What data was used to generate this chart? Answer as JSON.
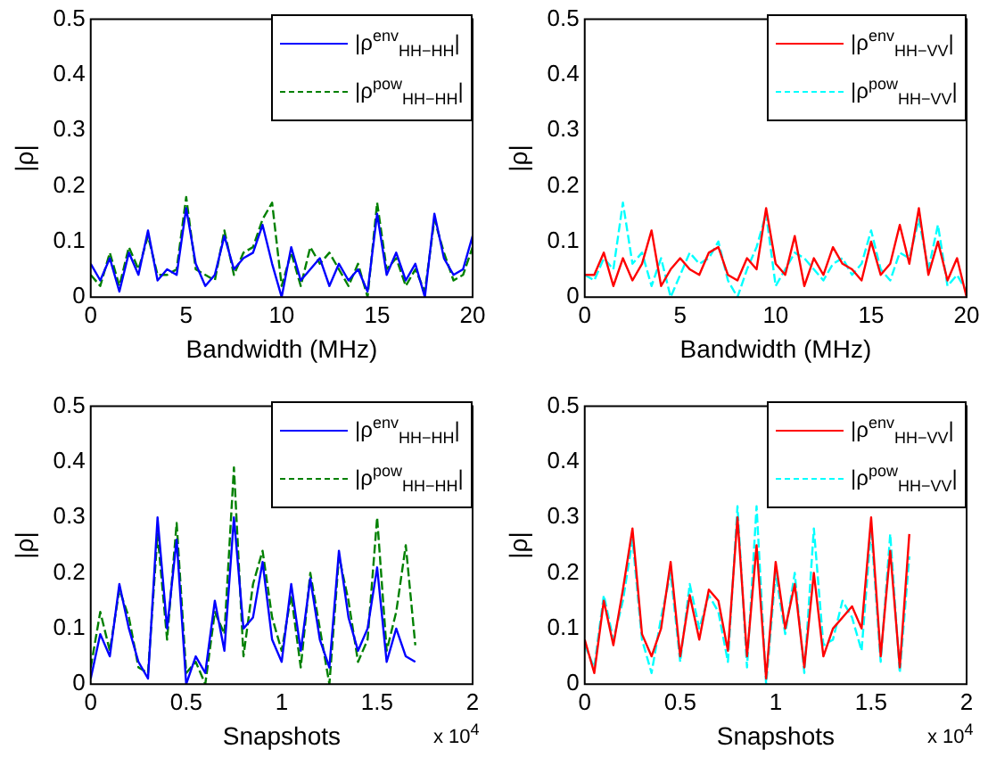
{
  "chart_data": [
    {
      "type": "line",
      "xlabel": "Bandwidth (MHz)",
      "ylabel": "|ρ|",
      "xlim": [
        0,
        20
      ],
      "xticks": [
        0,
        5,
        10,
        15,
        20
      ],
      "ylim": [
        0,
        0.5
      ],
      "yticks": [
        0,
        0.1,
        0.2,
        0.3,
        0.4,
        0.5
      ],
      "legend": "top right",
      "marker": "none",
      "x": [
        0,
        0.5,
        1,
        1.5,
        2,
        2.5,
        3,
        3.5,
        4,
        4.5,
        5,
        5.5,
        6,
        6.5,
        7,
        7.5,
        8,
        8.5,
        9,
        9.5,
        10,
        10.5,
        11,
        11.5,
        12,
        12.5,
        13,
        13.5,
        14,
        14.5,
        15,
        15.5,
        16,
        16.5,
        17,
        17.5,
        18,
        18.5,
        19,
        19.5,
        20
      ],
      "series": [
        {
          "name": "|ρ$^{env}$$_{HH−HH}$|",
          "color": "#0000ff",
          "line_style": "solid",
          "values": [
            0.06,
            0.03,
            0.07,
            0.01,
            0.08,
            0.04,
            0.12,
            0.03,
            0.05,
            0.04,
            0.16,
            0.06,
            0.02,
            0.04,
            0.11,
            0.05,
            0.07,
            0.08,
            0.13,
            0.06,
            0.0,
            0.09,
            0.03,
            0.05,
            0.07,
            0.02,
            0.06,
            0.03,
            0.05,
            0.01,
            0.15,
            0.04,
            0.08,
            0.03,
            0.06,
            0.0,
            0.15,
            0.07,
            0.04,
            0.05,
            0.11
          ]
        },
        {
          "name": "|ρ$^{pow}$$_{HH−HH}$|",
          "color": "#008000",
          "line_style": "dashed",
          "values": [
            0.04,
            0.02,
            0.08,
            0.02,
            0.09,
            0.05,
            0.11,
            0.04,
            0.04,
            0.05,
            0.18,
            0.05,
            0.04,
            0.03,
            0.12,
            0.04,
            0.08,
            0.09,
            0.14,
            0.17,
            0.02,
            0.08,
            0.02,
            0.09,
            0.06,
            0.08,
            0.05,
            0.02,
            0.06,
            0.0,
            0.17,
            0.05,
            0.07,
            0.02,
            0.05,
            0.01,
            0.14,
            0.08,
            0.03,
            0.04,
            0.09
          ]
        }
      ]
    },
    {
      "type": "line",
      "xlabel": "Bandwidth (MHz)",
      "ylabel": "|ρ|",
      "xlim": [
        0,
        20
      ],
      "xticks": [
        0,
        5,
        10,
        15,
        20
      ],
      "ylim": [
        0,
        0.5
      ],
      "yticks": [
        0,
        0.1,
        0.2,
        0.3,
        0.4,
        0.5
      ],
      "legend": "top right",
      "marker": "none",
      "x": [
        0,
        0.5,
        1,
        1.5,
        2,
        2.5,
        3,
        3.5,
        4,
        4.5,
        5,
        5.5,
        6,
        6.5,
        7,
        7.5,
        8,
        8.5,
        9,
        9.5,
        10,
        10.5,
        11,
        11.5,
        12,
        12.5,
        13,
        13.5,
        14,
        14.5,
        15,
        15.5,
        16,
        16.5,
        17,
        17.5,
        18,
        18.5,
        19,
        19.5,
        20
      ],
      "series": [
        {
          "name": "|ρ$^{env}$$_{HH−VV}$|",
          "color": "#ff0000",
          "line_style": "solid",
          "values": [
            0.04,
            0.04,
            0.08,
            0.02,
            0.07,
            0.03,
            0.06,
            0.12,
            0.02,
            0.05,
            0.07,
            0.05,
            0.04,
            0.08,
            0.09,
            0.04,
            0.03,
            0.07,
            0.05,
            0.16,
            0.06,
            0.04,
            0.11,
            0.02,
            0.07,
            0.04,
            0.09,
            0.06,
            0.05,
            0.03,
            0.1,
            0.04,
            0.06,
            0.13,
            0.06,
            0.16,
            0.04,
            0.1,
            0.03,
            0.07,
            0.0
          ]
        },
        {
          "name": "|ρ$^{pow}$$_{HH−VV}$|",
          "color": "#00ffff",
          "line_style": "dashed",
          "values": [
            0.04,
            0.03,
            0.07,
            0.05,
            0.17,
            0.06,
            0.08,
            0.02,
            0.07,
            0.0,
            0.04,
            0.08,
            0.06,
            0.07,
            0.1,
            0.03,
            0.0,
            0.05,
            0.09,
            0.15,
            0.02,
            0.05,
            0.08,
            0.07,
            0.05,
            0.03,
            0.06,
            0.07,
            0.04,
            0.06,
            0.12,
            0.05,
            0.03,
            0.08,
            0.07,
            0.14,
            0.05,
            0.13,
            0.02,
            0.04,
            0.01
          ]
        }
      ]
    },
    {
      "type": "line",
      "xlabel": "Snapshots",
      "ylabel": "|ρ|",
      "annotations": [
        "x 10$^{4}$"
      ],
      "xlim": [
        0,
        2
      ],
      "xticks": [
        0,
        0.5,
        1,
        1.5,
        2
      ],
      "ylim": [
        0,
        0.5
      ],
      "yticks": [
        0,
        0.1,
        0.2,
        0.3,
        0.4,
        0.5
      ],
      "legend": "top right",
      "marker": "none",
      "x": [
        0,
        0.05,
        0.1,
        0.15,
        0.2,
        0.25,
        0.3,
        0.35,
        0.4,
        0.45,
        0.5,
        0.55,
        0.6,
        0.65,
        0.7,
        0.75,
        0.8,
        0.85,
        0.9,
        0.95,
        1,
        1.05,
        1.1,
        1.15,
        1.2,
        1.25,
        1.3,
        1.35,
        1.4,
        1.45,
        1.5,
        1.55,
        1.6,
        1.65,
        1.7
      ],
      "series": [
        {
          "name": "|ρ$^{env}$$_{HH−HH}$|",
          "color": "#0000ff",
          "line_style": "solid",
          "values": [
            0.01,
            0.09,
            0.05,
            0.18,
            0.1,
            0.04,
            0.01,
            0.3,
            0.1,
            0.26,
            0.0,
            0.05,
            0.02,
            0.15,
            0.06,
            0.3,
            0.1,
            0.12,
            0.22,
            0.08,
            0.04,
            0.18,
            0.06,
            0.19,
            0.08,
            0.03,
            0.24,
            0.12,
            0.06,
            0.1,
            0.21,
            0.04,
            0.1,
            0.05,
            0.04
          ]
        },
        {
          "name": "|ρ$^{pow}$$_{HH−HH}$|",
          "color": "#008000",
          "line_style": "dashed",
          "values": [
            0.03,
            0.13,
            0.06,
            0.17,
            0.12,
            0.03,
            0.02,
            0.27,
            0.08,
            0.29,
            0.02,
            0.04,
            0.0,
            0.13,
            0.09,
            0.39,
            0.05,
            0.18,
            0.24,
            0.12,
            0.06,
            0.16,
            0.03,
            0.2,
            0.1,
            0.0,
            0.23,
            0.15,
            0.04,
            0.08,
            0.3,
            0.06,
            0.13,
            0.25,
            0.07
          ]
        }
      ]
    },
    {
      "type": "line",
      "xlabel": "Snapshots",
      "ylabel": "|ρ|",
      "annotations": [
        "x 10$^{4}$"
      ],
      "xlim": [
        0,
        2
      ],
      "xticks": [
        0,
        0.5,
        1,
        1.5,
        2
      ],
      "ylim": [
        0,
        0.5
      ],
      "yticks": [
        0,
        0.1,
        0.2,
        0.3,
        0.4,
        0.5
      ],
      "legend": "top right",
      "marker": "none",
      "x": [
        0,
        0.05,
        0.1,
        0.15,
        0.2,
        0.25,
        0.3,
        0.35,
        0.4,
        0.45,
        0.5,
        0.55,
        0.6,
        0.65,
        0.7,
        0.75,
        0.8,
        0.85,
        0.9,
        0.95,
        1,
        1.05,
        1.1,
        1.15,
        1.2,
        1.25,
        1.3,
        1.35,
        1.4,
        1.45,
        1.5,
        1.55,
        1.6,
        1.65,
        1.7
      ],
      "series": [
        {
          "name": "|ρ$^{env}$$_{HH−VV}$|",
          "color": "#ff0000",
          "line_style": "solid",
          "values": [
            0.08,
            0.02,
            0.15,
            0.07,
            0.17,
            0.28,
            0.09,
            0.05,
            0.1,
            0.22,
            0.05,
            0.16,
            0.08,
            0.17,
            0.15,
            0.06,
            0.3,
            0.05,
            0.25,
            0.01,
            0.22,
            0.1,
            0.18,
            0.03,
            0.2,
            0.05,
            0.1,
            0.12,
            0.14,
            0.1,
            0.3,
            0.05,
            0.24,
            0.03,
            0.27
          ]
        },
        {
          "name": "|ρ$^{pow}$$_{HH−VV}$|",
          "color": "#00ffff",
          "line_style": "dashed",
          "values": [
            0.07,
            0.03,
            0.16,
            0.08,
            0.15,
            0.26,
            0.08,
            0.02,
            0.12,
            0.2,
            0.04,
            0.18,
            0.1,
            0.16,
            0.13,
            0.04,
            0.32,
            0.03,
            0.32,
            0.0,
            0.2,
            0.09,
            0.2,
            0.02,
            0.28,
            0.07,
            0.08,
            0.15,
            0.12,
            0.06,
            0.28,
            0.04,
            0.27,
            0.02,
            0.23
          ]
        }
      ]
    }
  ]
}
